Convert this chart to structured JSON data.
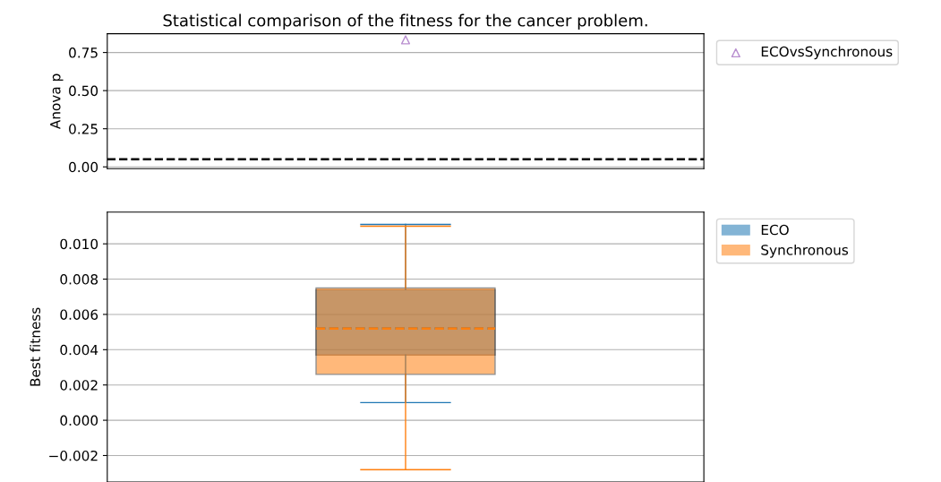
{
  "chart_data": [
    {
      "type": "scatter",
      "title": "Statistical comparison of the fitness for the cancer problem.",
      "ylabel": "Anova p",
      "categories": [
        null
      ],
      "ylim": [
        -0.012,
        0.873
      ],
      "yticks": [
        {
          "value": 0,
          "label": "0.00"
        },
        {
          "value": 0.25,
          "label": "0.25"
        },
        {
          "value": 0.5,
          "label": "0.50"
        },
        {
          "value": 0.75,
          "label": "0.75"
        }
      ],
      "series": [
        {
          "name": "ECOvsSynchronous",
          "color": "#b98fd0",
          "values": [
            0.833
          ]
        }
      ],
      "marker": "triangle",
      "grid": "y",
      "legend": "top right",
      "tick_labels": "y",
      "ref_lines": [
        {
          "axis": "y",
          "value": 0.05,
          "label": null,
          "color": "#000000",
          "line_style": "dashed"
        }
      ]
    },
    {
      "type": "box",
      "ylabel": "Best fitness",
      "categories": [
        null
      ],
      "ylim": [
        -0.0035,
        0.0118
      ],
      "yticks": [
        {
          "value": -0.002,
          "label": "−0.002"
        },
        {
          "value": 0,
          "label": "0.000"
        },
        {
          "value": 0.002,
          "label": "0.002"
        },
        {
          "value": 0.004,
          "label": "0.004"
        },
        {
          "value": 0.006,
          "label": "0.006"
        },
        {
          "value": 0.008,
          "label": "0.008"
        },
        {
          "value": 0.01,
          "label": "0.010"
        }
      ],
      "series": [
        {
          "name": "ECO",
          "color": "#1f77b4",
          "boxes": [
            {
              "low": 0.001,
              "q1": 0.0037,
              "median": 0.0052,
              "q3": 0.0074,
              "high": 0.0111
            }
          ]
        },
        {
          "name": "Synchronous",
          "color": "#ff7f0e",
          "boxes": [
            {
              "low": -0.0028,
              "q1": 0.0026,
              "median": 0.0052,
              "q3": 0.0075,
              "high": 0.011
            }
          ]
        }
      ],
      "line_style": "dashed",
      "grid": "y",
      "legend": "top right",
      "tick_labels": "y"
    }
  ]
}
